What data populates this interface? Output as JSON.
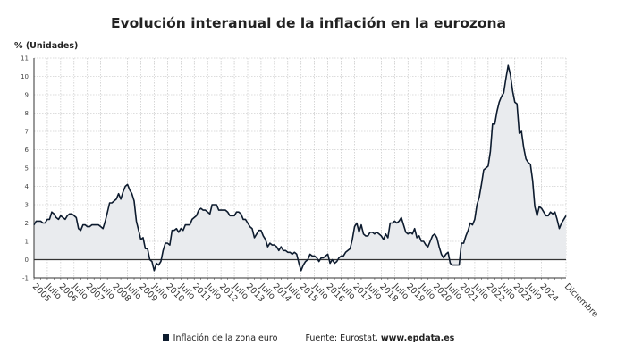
{
  "chart_data": {
    "type": "area",
    "title": "Evolución interanual de la inflación en la eurozona",
    "ylabel": "% (Unidades)",
    "xlabel": "",
    "ylim": [
      -1,
      11
    ],
    "yticks": [
      -1,
      0,
      1,
      2,
      3,
      4,
      5,
      6,
      7,
      8,
      9,
      10,
      11
    ],
    "grid": true,
    "legend_position": "bottom",
    "colors": {
      "line": "#0d1b2e",
      "fill": "#e9ebee",
      "zero_line": "#333333",
      "grid": "#bbbbbb"
    },
    "x_start": "2005-01",
    "x_end": "2024-12",
    "xtick_labels": [
      "2005",
      "Julio",
      "2006",
      "Julio",
      "2007",
      "Julio",
      "2008",
      "Julio",
      "2009",
      "Julio",
      "2010",
      "Julio",
      "2011",
      "Julio",
      "2012",
      "Julio",
      "2013",
      "Julio",
      "2014",
      "Julio",
      "2015",
      "Julio",
      "2016",
      "Julio",
      "2017",
      "Julio",
      "2018",
      "Julio",
      "2019",
      "Julio",
      "2020",
      "Julio",
      "2021",
      "Julio",
      "2022",
      "Julio",
      "2023",
      "Julio",
      "2024",
      "Diciembre"
    ],
    "series": [
      {
        "name": "Inflación de la zona euro",
        "values": [
          1.9,
          2.1,
          2.1,
          2.1,
          2.0,
          2.0,
          2.2,
          2.2,
          2.6,
          2.5,
          2.3,
          2.2,
          2.4,
          2.3,
          2.2,
          2.4,
          2.5,
          2.5,
          2.4,
          2.3,
          1.7,
          1.6,
          1.9,
          1.9,
          1.8,
          1.8,
          1.9,
          1.9,
          1.9,
          1.9,
          1.8,
          1.7,
          2.1,
          2.6,
          3.1,
          3.1,
          3.2,
          3.3,
          3.6,
          3.3,
          3.7,
          4.0,
          4.1,
          3.8,
          3.6,
          3.2,
          2.1,
          1.6,
          1.1,
          1.2,
          0.6,
          0.6,
          0.0,
          -0.1,
          -0.6,
          -0.2,
          -0.3,
          -0.1,
          0.5,
          0.9,
          0.9,
          0.8,
          1.6,
          1.6,
          1.7,
          1.5,
          1.7,
          1.6,
          1.9,
          1.9,
          1.9,
          2.2,
          2.3,
          2.4,
          2.7,
          2.8,
          2.7,
          2.7,
          2.6,
          2.5,
          3.0,
          3.0,
          3.0,
          2.7,
          2.7,
          2.7,
          2.7,
          2.6,
          2.4,
          2.4,
          2.4,
          2.6,
          2.6,
          2.5,
          2.2,
          2.2,
          2.0,
          1.8,
          1.7,
          1.2,
          1.4,
          1.6,
          1.6,
          1.3,
          1.1,
          0.7,
          0.9,
          0.8,
          0.8,
          0.7,
          0.5,
          0.7,
          0.5,
          0.5,
          0.4,
          0.4,
          0.3,
          0.4,
          0.3,
          -0.2,
          -0.6,
          -0.3,
          -0.1,
          0.0,
          0.3,
          0.2,
          0.2,
          0.1,
          -0.1,
          0.1,
          0.1,
          0.2,
          0.3,
          -0.2,
          0.0,
          -0.2,
          -0.1,
          0.1,
          0.2,
          0.2,
          0.4,
          0.5,
          0.6,
          1.1,
          1.8,
          2.0,
          1.5,
          1.9,
          1.4,
          1.3,
          1.3,
          1.5,
          1.5,
          1.4,
          1.5,
          1.4,
          1.3,
          1.1,
          1.4,
          1.2,
          2.0,
          2.0,
          2.1,
          2.0,
          2.1,
          2.3,
          1.9,
          1.5,
          1.4,
          1.5,
          1.4,
          1.7,
          1.2,
          1.3,
          1.0,
          1.0,
          0.8,
          0.7,
          1.0,
          1.3,
          1.4,
          1.2,
          0.7,
          0.3,
          0.1,
          0.3,
          0.4,
          -0.2,
          -0.3,
          -0.3,
          -0.3,
          -0.3,
          0.9,
          0.9,
          1.3,
          1.6,
          2.0,
          1.9,
          2.2,
          3.0,
          3.4,
          4.1,
          4.9,
          5.0,
          5.1,
          5.9,
          7.4,
          7.4,
          8.1,
          8.6,
          8.9,
          9.1,
          9.9,
          10.6,
          10.1,
          9.2,
          8.6,
          8.5,
          6.9,
          7.0,
          6.1,
          5.5,
          5.3,
          5.2,
          4.3,
          2.9,
          2.4,
          2.9,
          2.8,
          2.6,
          2.4,
          2.4,
          2.6,
          2.5,
          2.6,
          2.2,
          1.7,
          2.0,
          2.2,
          2.4
        ]
      }
    ]
  },
  "source": {
    "prefix": "Fuente: Eurostat, ",
    "site": "www.epdata.es"
  }
}
